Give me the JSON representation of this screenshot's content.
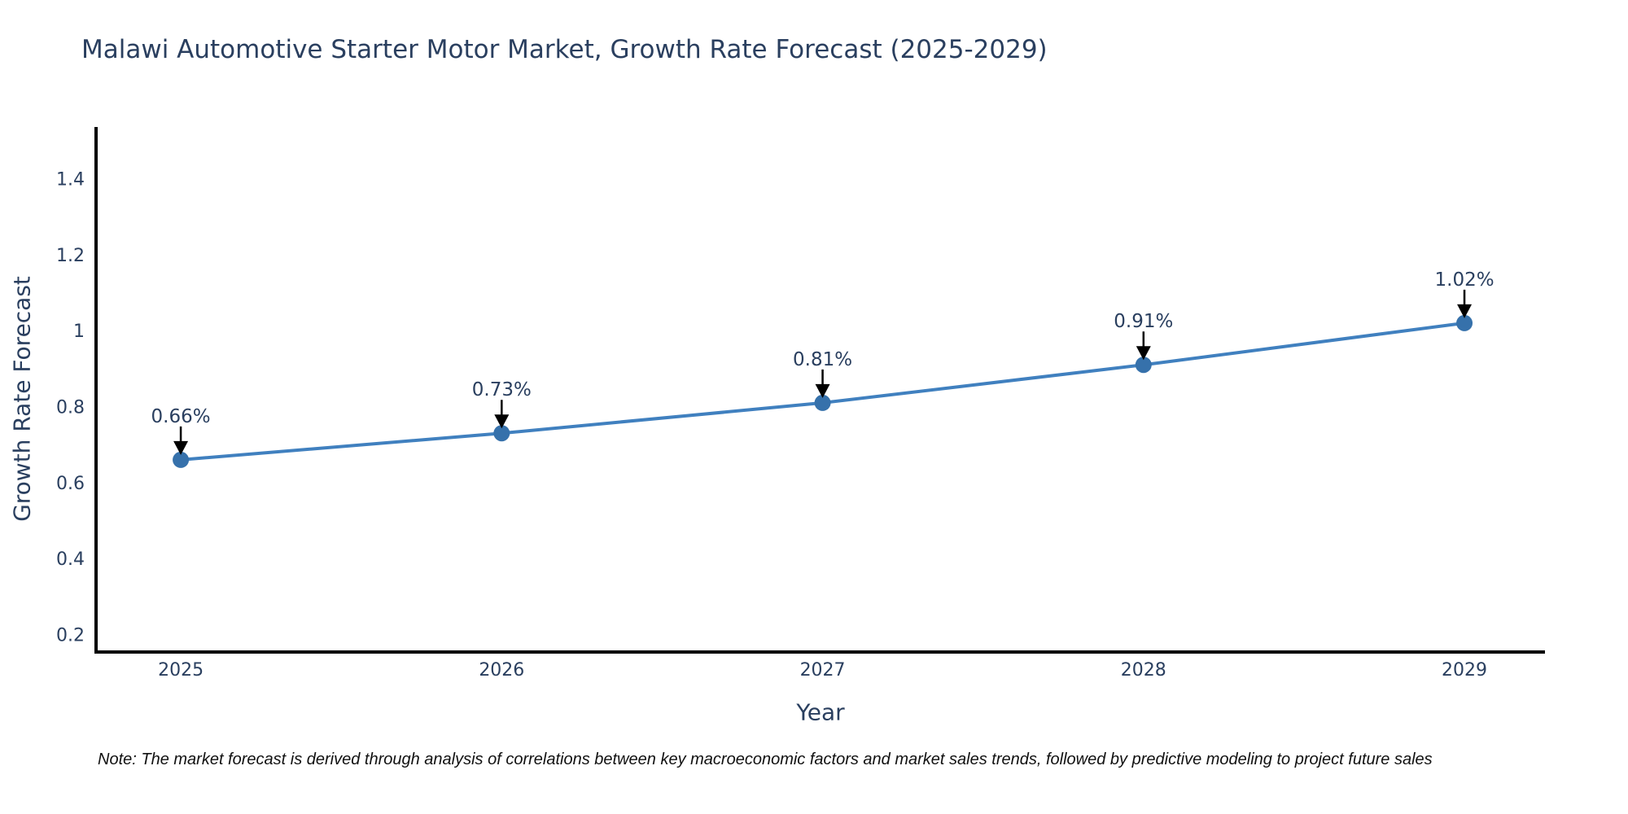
{
  "figure": {
    "note": "Note: The market forecast is derived through analysis of correlations between key macroeconomic factors and market sales trends, followed by predictive modeling to project future sales"
  },
  "chart_data": {
    "type": "line",
    "title": "Malawi Automotive Starter Motor Market, Growth Rate Forecast (2025-2029)",
    "xlabel": "Year",
    "ylabel": "Growth Rate Forecast",
    "x": [
      2025,
      2026,
      2027,
      2028,
      2029
    ],
    "series": [
      {
        "name": "Growth Rate Forecast",
        "values": [
          0.66,
          0.73,
          0.81,
          0.91,
          1.02
        ],
        "point_labels": [
          "0.66%",
          "0.73%",
          "0.81%",
          "0.91%",
          "1.02%"
        ]
      }
    ],
    "x_tick_labels": [
      "2025",
      "2026",
      "2027",
      "2028",
      "2029"
    ],
    "y_ticks": [
      0.2,
      0.4,
      0.6,
      0.8,
      1,
      1.2,
      1.4
    ],
    "y_tick_labels": [
      "0.2",
      "0.4",
      "0.6",
      "0.8",
      "1",
      "1.2",
      "1.4"
    ],
    "xlim": [
      2024.736,
      2029.251
    ],
    "ylim": [
      0.154,
      1.532
    ],
    "grid": false,
    "legend": false,
    "annotations_arrows": true,
    "colors": {
      "line": "#4080bf",
      "marker": "#3671ab",
      "axis": "#000000",
      "text": "#2a3f5f",
      "arrow": "#000000",
      "note_text": "#111111",
      "background": "#ffffff"
    }
  }
}
